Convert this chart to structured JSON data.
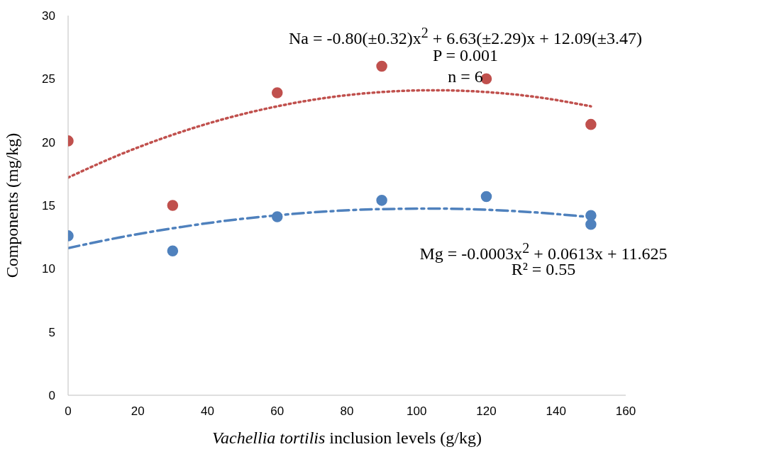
{
  "chart_data": {
    "type": "scatter",
    "xlabel": "Vachellia tortilis inclusion levels (g/kg)",
    "ylabel": "Components (mg/kg)",
    "series": [
      {
        "marker": "circle",
        "color": "#c0504d",
        "x": [
          0,
          30,
          60,
          90,
          120,
          150
        ],
        "values": [
          20.1,
          15.0,
          23.9,
          26.0,
          25.0,
          21.4
        ]
      },
      {
        "marker": "circle",
        "color": "#4f81bd",
        "x": [
          0,
          30,
          60,
          90,
          120,
          150,
          150
        ],
        "values": [
          12.6,
          11.4,
          14.1,
          15.4,
          15.7,
          14.2,
          13.5
        ]
      },
      {
        "type": "line",
        "color": "#c0504d",
        "line_style": "dotted",
        "x": [
          0,
          15,
          30,
          45,
          60,
          75,
          90,
          105,
          120,
          135,
          150
        ],
        "values": [
          17.2,
          19.03,
          20.58,
          21.85,
          22.83,
          23.54,
          23.96,
          24.1,
          23.96,
          23.54,
          22.83
        ]
      },
      {
        "type": "line",
        "color": "#4f81bd",
        "line_style": "dashed",
        "x": [
          0,
          15,
          30,
          45,
          60,
          75,
          90,
          105,
          120,
          135,
          150
        ],
        "values": [
          11.63,
          12.48,
          13.19,
          13.78,
          14.22,
          14.54,
          14.71,
          14.75,
          14.66,
          14.43,
          14.07
        ]
      }
    ],
    "xlim": [
      0,
      160
    ],
    "xticks": [
      0,
      20,
      40,
      60,
      80,
      100,
      120,
      140,
      160
    ],
    "ylim": [
      0,
      30
    ],
    "yticks": [
      0,
      5,
      10,
      15,
      20,
      25,
      30
    ],
    "grid": false,
    "legend": false,
    "annotations": [
      "Na = -0.80(±0.32)x$^{2}$ + 6.63(±2.29)x + 12.09(±3.47)",
      "P = 0.001",
      "n = 6",
      "Mg = -0.0003x$^{2}$ + 0.0613x + 11.625",
      "R² = 0.55"
    ]
  }
}
